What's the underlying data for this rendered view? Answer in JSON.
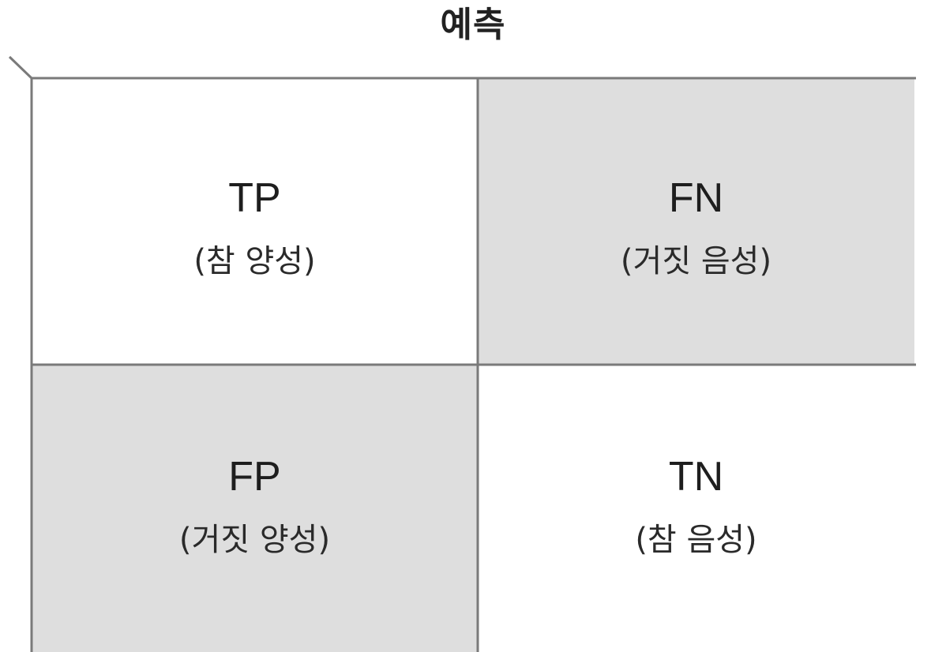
{
  "title": "예측",
  "colors": {
    "white_cell": "#ffffff",
    "shaded_cell": "#dedede",
    "grid_line": "#7a7a7a",
    "text": "#1e1e1e"
  },
  "cells": {
    "tp": {
      "abbr": "TP",
      "desc": "(참 양성)",
      "shaded": false
    },
    "fn": {
      "abbr": "FN",
      "desc": "(거짓 음성)",
      "shaded": true
    },
    "fp": {
      "abbr": "FP",
      "desc": "(거짓 양성)",
      "shaded": true
    },
    "tn": {
      "abbr": "TN",
      "desc": "(참 음성)",
      "shaded": false
    }
  }
}
